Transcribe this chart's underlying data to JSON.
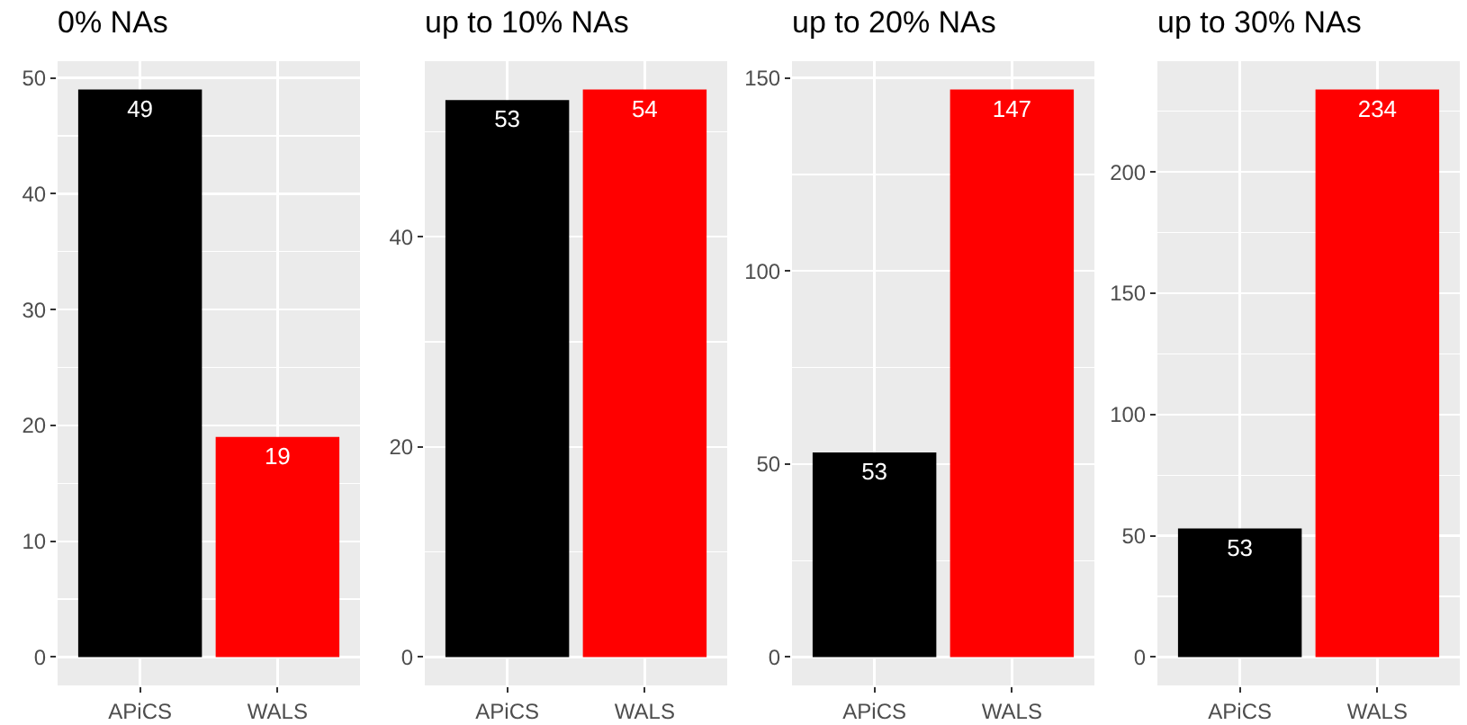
{
  "chart_data": [
    {
      "type": "bar",
      "title": "0% NAs",
      "categories": [
        "APiCS",
        "WALS"
      ],
      "values": [
        49,
        19
      ],
      "colors": [
        "#000000",
        "#ff0000"
      ],
      "ylim": [
        -2.45,
        51.45
      ],
      "yticks": [
        0,
        {
          "value": 5,
          "label": null
        },
        10,
        {
          "value": 15,
          "label": null
        },
        20,
        {
          "value": 25,
          "label": null
        },
        30,
        {
          "value": 35,
          "label": null
        },
        40,
        {
          "value": 45,
          "label": null
        },
        50
      ],
      "grid": true,
      "data_labels": true
    },
    {
      "type": "bar",
      "title": "up to 10% NAs",
      "categories": [
        "APiCS",
        "WALS"
      ],
      "values": [
        53,
        54
      ],
      "colors": [
        "#000000",
        "#ff0000"
      ],
      "ylim": [
        -2.7,
        56.7
      ],
      "yticks": [
        0,
        {
          "value": 10,
          "label": null
        },
        20,
        {
          "value": 30,
          "label": null
        },
        40,
        {
          "value": 50,
          "label": null
        }
      ],
      "grid": true,
      "data_labels": true
    },
    {
      "type": "bar",
      "title": "up to 20% NAs",
      "categories": [
        "APiCS",
        "WALS"
      ],
      "values": [
        53,
        147
      ],
      "colors": [
        "#000000",
        "#ff0000"
      ],
      "ylim": [
        -7.35,
        154.35
      ],
      "yticks": [
        0,
        {
          "value": 25,
          "label": null
        },
        50,
        {
          "value": 75,
          "label": null
        },
        100,
        {
          "value": 125,
          "label": null
        },
        150
      ],
      "grid": true,
      "data_labels": true
    },
    {
      "type": "bar",
      "title": "up to 30% NAs",
      "categories": [
        "APiCS",
        "WALS"
      ],
      "values": [
        53,
        234
      ],
      "colors": [
        "#000000",
        "#ff0000"
      ],
      "ylim": [
        -11.7,
        245.7
      ],
      "yticks": [
        0,
        {
          "value": 25,
          "label": null
        },
        50,
        {
          "value": 75,
          "label": null
        },
        100,
        {
          "value": 125,
          "label": null
        },
        150,
        {
          "value": 175,
          "label": null
        },
        200,
        {
          "value": 225,
          "label": null
        }
      ],
      "grid": true,
      "data_labels": true
    }
  ]
}
